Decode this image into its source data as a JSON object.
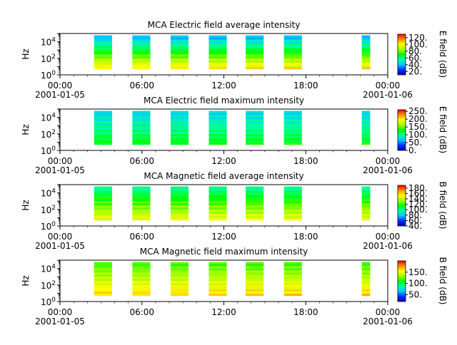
{
  "chart_data": [
    {
      "type": "heatmap",
      "title": "MCA  Electric field average intensity",
      "ylabel": "Hz",
      "colorbar_label": "E field (dB)",
      "colorbar_ticks": [
        "20.",
        "40.",
        "60.",
        "80.",
        "100.",
        "120."
      ],
      "colorbar_range": [
        10,
        130
      ],
      "yscale": "log",
      "ylim": [
        1,
        100000
      ],
      "y_ticks": [
        "10^0",
        "10^2",
        "10^4"
      ],
      "x_ticks": [
        "00:00",
        "06:00",
        "12:00",
        "18:00",
        "00:00"
      ],
      "x_dates": [
        "2001-01-05",
        "2001-01-06"
      ],
      "xlim_hours": [
        0,
        24
      ],
      "segments_hours": [
        [
          2.5,
          3.8
        ],
        [
          5.3,
          6.6
        ],
        [
          8.1,
          9.4
        ],
        [
          10.9,
          12.2
        ],
        [
          13.6,
          14.9
        ],
        [
          16.4,
          17.7
        ],
        [
          22.1,
          22.7
        ]
      ],
      "freq_range": [
        5,
        60000
      ],
      "level_low_freq": 105,
      "level_high_freq": 35
    },
    {
      "type": "heatmap",
      "title": "MCA  Electric field maximum intensity",
      "ylabel": "Hz",
      "colorbar_label": "E field (dB)",
      "colorbar_ticks": [
        "0.",
        "50.",
        "100.",
        "150.",
        "200.",
        "250."
      ],
      "colorbar_range": [
        0,
        260
      ],
      "yscale": "log",
      "ylim": [
        1,
        100000
      ],
      "y_ticks": [
        "10^0",
        "10^2",
        "10^4"
      ],
      "x_ticks": [
        "00:00",
        "06:00",
        "12:00",
        "18:00",
        "00:00"
      ],
      "x_dates": [
        "2001-01-05",
        "2001-01-06"
      ],
      "xlim_hours": [
        0,
        24
      ],
      "segments_hours": [
        [
          2.5,
          3.8
        ],
        [
          5.3,
          6.6
        ],
        [
          8.1,
          9.4
        ],
        [
          10.9,
          12.2
        ],
        [
          13.6,
          14.9
        ],
        [
          16.4,
          17.7
        ],
        [
          22.1,
          22.7
        ]
      ],
      "freq_range": [
        5,
        60000
      ],
      "level_low_freq": 130,
      "level_high_freq": 70
    },
    {
      "type": "heatmap",
      "title": "MCA  Magnetic field average intensity",
      "ylabel": "Hz",
      "colorbar_label": "B field (dB)",
      "colorbar_ticks": [
        "40.",
        "60.",
        "80.",
        "100.",
        "120.",
        "140.",
        "160.",
        "180."
      ],
      "colorbar_range": [
        40,
        190
      ],
      "yscale": "log",
      "ylim": [
        1,
        100000
      ],
      "y_ticks": [
        "10^0",
        "10^2",
        "10^4"
      ],
      "x_ticks": [
        "00:00",
        "06:00",
        "12:00",
        "18:00",
        "00:00"
      ],
      "x_dates": [
        "2001-01-05",
        "2001-01-06"
      ],
      "xlim_hours": [
        0,
        24
      ],
      "segments_hours": [
        [
          2.5,
          3.8
        ],
        [
          5.3,
          6.6
        ],
        [
          8.1,
          9.4
        ],
        [
          10.9,
          12.2
        ],
        [
          13.6,
          14.9
        ],
        [
          16.4,
          17.7
        ],
        [
          22.1,
          22.7
        ]
      ],
      "freq_range": [
        5,
        60000
      ],
      "level_low_freq": 150,
      "level_high_freq": 95
    },
    {
      "type": "heatmap",
      "title": "MCA  Magnetic field maximum intensity",
      "ylabel": "Hz",
      "colorbar_label": "B field (dB)",
      "colorbar_ticks": [
        "50.",
        "100.",
        "150."
      ],
      "colorbar_range": [
        20,
        200
      ],
      "yscale": "log",
      "ylim": [
        1,
        100000
      ],
      "y_ticks": [
        "10^0",
        "10^2",
        "10^4"
      ],
      "x_ticks": [
        "00:00",
        "06:00",
        "12:00",
        "18:00",
        "00:00"
      ],
      "x_dates": [
        "2001-01-05",
        "2001-01-06"
      ],
      "xlim_hours": [
        0,
        24
      ],
      "segments_hours": [
        [
          2.5,
          3.8
        ],
        [
          5.3,
          6.6
        ],
        [
          8.1,
          9.4
        ],
        [
          10.9,
          12.2
        ],
        [
          13.6,
          14.9
        ],
        [
          16.4,
          17.7
        ],
        [
          22.1,
          22.7
        ]
      ],
      "freq_range": [
        5,
        60000
      ],
      "level_low_freq": 165,
      "level_high_freq": 115
    }
  ]
}
